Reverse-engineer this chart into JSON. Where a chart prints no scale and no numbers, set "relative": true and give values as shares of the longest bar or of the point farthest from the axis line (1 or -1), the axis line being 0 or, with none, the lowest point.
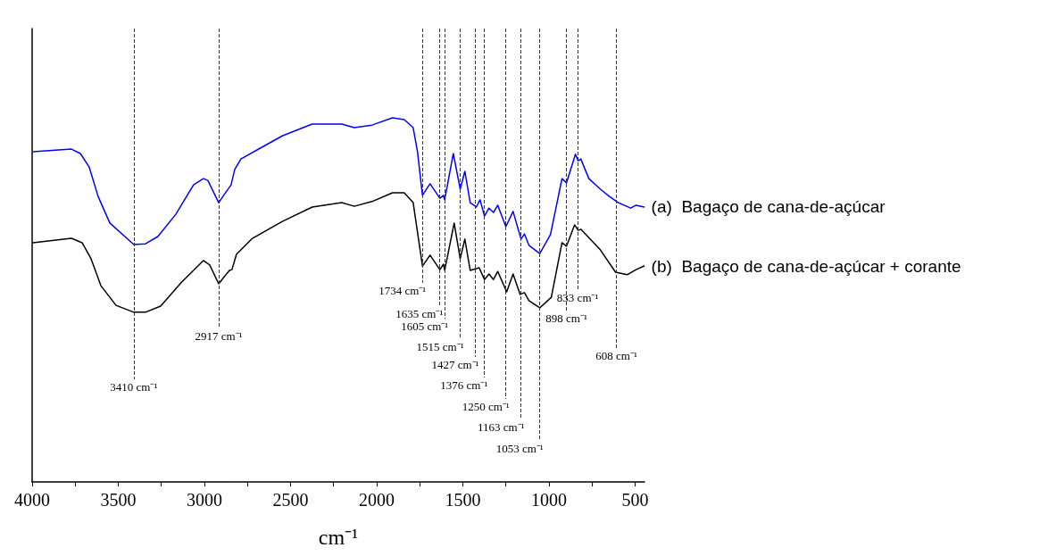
{
  "chart_data": {
    "type": "line",
    "relative": true,
    "xlabel": "cm⁻¹",
    "legend": false,
    "grid": false,
    "marker": "none",
    "line_style": "solid",
    "xlim": [
      4000,
      445
    ],
    "xticks": [
      4000,
      {
        "value": 3750,
        "label": null
      },
      3500,
      {
        "value": 3250,
        "label": null
      },
      3000,
      {
        "value": 2750,
        "label": null
      },
      2500,
      {
        "value": 2250,
        "label": null
      },
      2000,
      {
        "value": 1750,
        "label": null
      },
      1500,
      {
        "value": 1250,
        "label": null
      },
      1000,
      {
        "value": 750,
        "label": null
      },
      500
    ],
    "series": [
      {
        "name": "(a)  Bagaço de cana-de-açúcar",
        "color": "#0000ff",
        "x": [
          3995,
          3772,
          3720,
          3669,
          3617,
          3549,
          3410,
          3342,
          3270,
          3166,
          3063,
          3006,
          2980,
          2917,
          2881,
          2855,
          2845,
          2824,
          2788,
          2648,
          2545,
          2374,
          2203,
          2130,
          2027,
          1908,
          1840,
          1788,
          1763,
          1734,
          1690,
          1633,
          1612,
          1605,
          1555,
          1515,
          1488,
          1457,
          1421,
          1400,
          1374,
          1348,
          1322,
          1297,
          1250,
          1208,
          1162,
          1142,
          1116,
          1053,
          991,
          924,
          898,
          846,
          830,
          815,
          768,
          701,
          649,
          597,
          525,
          494,
          447
        ],
        "values": [
          0.907,
          0.914,
          0.902,
          0.865,
          0.784,
          0.711,
          0.652,
          0.654,
          0.674,
          0.735,
          0.816,
          0.833,
          0.828,
          0.767,
          0.792,
          0.809,
          0.816,
          0.858,
          0.887,
          0.924,
          0.951,
          0.983,
          0.983,
          0.973,
          0.98,
          1,
          0.995,
          0.973,
          0.907,
          0.787,
          0.819,
          0.779,
          0.787,
          0.775,
          0.902,
          0.804,
          0.853,
          0.767,
          0.755,
          0.775,
          0.73,
          0.752,
          0.74,
          0.76,
          0.701,
          0.743,
          0.667,
          0.681,
          0.65,
          0.627,
          0.679,
          0.833,
          0.821,
          0.9,
          0.882,
          0.887,
          0.833,
          0.804,
          0.784,
          0.767,
          0.752,
          0.76,
          0.755
        ]
      },
      {
        "name": "(b)  Bagaço de cana-de-açúcar + corante",
        "color": "#000000",
        "x": [
          3995,
          3772,
          3710,
          3658,
          3601,
          3513,
          3410,
          3342,
          3254,
          3135,
          3006,
          2969,
          2917,
          2855,
          2840,
          2814,
          2721,
          2545,
          2374,
          2203,
          2130,
          2027,
          1908,
          1840,
          1788,
          1734,
          1690,
          1633,
          1612,
          1605,
          1550,
          1515,
          1488,
          1457,
          1405,
          1374,
          1348,
          1322,
          1297,
          1245,
          1208,
          1167,
          1142,
          1116,
          1053,
          986,
          924,
          898,
          851,
          830,
          815,
          701,
          613,
          546,
          494,
          447
        ],
        "values": [
          0.657,
          0.669,
          0.657,
          0.613,
          0.539,
          0.485,
          0.466,
          0.466,
          0.483,
          0.547,
          0.608,
          0.596,
          0.544,
          0.581,
          0.583,
          0.625,
          0.669,
          0.716,
          0.755,
          0.767,
          0.757,
          0.77,
          0.794,
          0.794,
          0.767,
          0.593,
          0.623,
          0.583,
          0.598,
          0.581,
          0.711,
          0.613,
          0.667,
          0.581,
          0.588,
          0.556,
          0.571,
          0.556,
          0.578,
          0.522,
          0.571,
          0.515,
          0.52,
          0.498,
          0.478,
          0.507,
          0.657,
          0.647,
          0.706,
          0.691,
          0.694,
          0.637,
          0.576,
          0.569,
          0.583,
          0.593
        ]
      }
    ],
    "ref_lines": [
      {
        "axis": "x",
        "value": 3410,
        "label": "3410 cm⁻¹",
        "line_style": "dashed",
        "color": "#333333"
      },
      {
        "axis": "x",
        "value": 2917,
        "label": "2917 cm⁻¹",
        "line_style": "dashed",
        "color": "#333333"
      },
      {
        "axis": "x",
        "value": 1734,
        "label": "1734 cm⁻¹",
        "line_style": "dashed",
        "color": "#333333"
      },
      {
        "axis": "x",
        "value": 1635,
        "label": "1635 cm⁻¹",
        "line_style": "dashed",
        "color": "#333333"
      },
      {
        "axis": "x",
        "value": 1605,
        "label": "1605 cm⁻¹",
        "line_style": "dashed",
        "color": "#333333"
      },
      {
        "axis": "x",
        "value": 1515,
        "label": "1515 cm⁻¹",
        "line_style": "dashed",
        "color": "#333333"
      },
      {
        "axis": "x",
        "value": 1427,
        "label": "1427 cm⁻¹",
        "line_style": "dashed",
        "color": "#333333"
      },
      {
        "axis": "x",
        "value": 1376,
        "label": "1376 cm⁻¹",
        "line_style": "dashed",
        "color": "#333333"
      },
      {
        "axis": "x",
        "value": 1250,
        "label": "1250 cm⁻¹",
        "line_style": "dashed",
        "color": "#333333"
      },
      {
        "axis": "x",
        "value": 1163,
        "label": "1163 cm⁻¹",
        "line_style": "dashed",
        "color": "#333333"
      },
      {
        "axis": "x",
        "value": 1053,
        "label": "1053 cm⁻¹",
        "line_style": "dashed",
        "color": "#333333"
      },
      {
        "axis": "x",
        "value": 898,
        "label": "898 cm⁻¹",
        "line_style": "dashed",
        "color": "#333333"
      },
      {
        "axis": "x",
        "value": 833,
        "label": "833 cm⁻¹",
        "line_style": "dashed",
        "color": "#333333"
      },
      {
        "axis": "x",
        "value": 608,
        "label": "608 cm⁻¹",
        "line_style": "dashed",
        "color": "#333333"
      }
    ]
  }
}
